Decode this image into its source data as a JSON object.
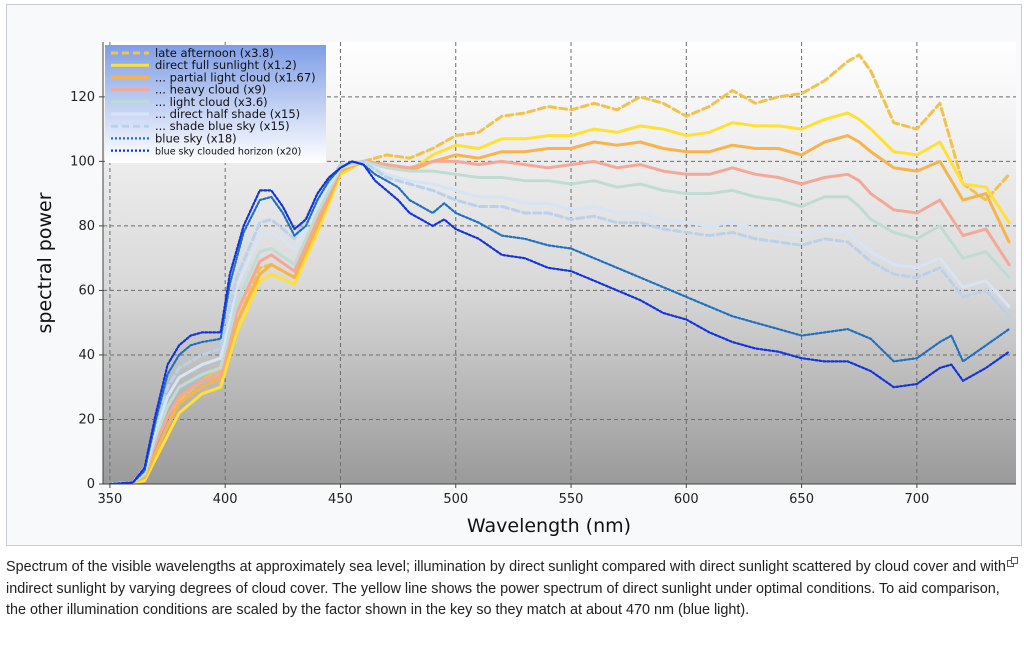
{
  "caption": "Spectrum of the visible wavelengths at approximately sea level; illumination by direct sunlight compared with direct sunlight scattered by cloud cover and with indirect sunlight by varying degrees of cloud cover. The yellow line shows the power spectrum of direct sunlight under optimal conditions. To aid comparison, the other illumination conditions are scaled by the factor shown in the key so they match at about 470 nm (blue light).",
  "icons": {
    "enlarge": "enlarge-icon"
  },
  "chart_data": {
    "type": "line",
    "title": "",
    "xlabel": "Wavelength (nm)",
    "ylabel": "spectral power",
    "xlim": [
      347,
      743
    ],
    "ylim": [
      0,
      137
    ],
    "xticks": [
      350,
      400,
      450,
      500,
      550,
      600,
      650,
      700
    ],
    "yticks": [
      0,
      20,
      40,
      60,
      80,
      100,
      120
    ],
    "grid": true,
    "legend_position": "top-left",
    "series": [
      {
        "name": "late afternoon (x3.8)",
        "color": "#f2c24a",
        "style": "dashed",
        "x": [
          350,
          360,
          365,
          370,
          375,
          380,
          390,
          398,
          405,
          415,
          420,
          430,
          440,
          450,
          460,
          470,
          480,
          490,
          500,
          510,
          520,
          530,
          540,
          550,
          560,
          570,
          580,
          590,
          600,
          610,
          620,
          630,
          640,
          650,
          660,
          670,
          675,
          680,
          690,
          700,
          710,
          720,
          730,
          740
        ],
        "y": [
          0,
          0.5,
          2,
          10,
          18,
          26,
          32,
          36,
          50,
          67,
          68,
          64,
          80,
          98,
          100,
          102,
          101,
          104,
          108,
          109,
          114,
          115,
          117,
          116,
          118,
          116,
          120,
          118,
          114,
          117,
          122,
          118,
          120,
          121,
          125,
          131,
          133,
          128,
          112,
          110,
          118,
          93,
          88,
          96
        ]
      },
      {
        "name": "direct full sunlight (x1.2)",
        "color": "#ffe033",
        "style": "solid",
        "x": [
          350,
          360,
          365,
          370,
          375,
          380,
          390,
          398,
          405,
          415,
          420,
          430,
          440,
          450,
          460,
          470,
          480,
          490,
          500,
          510,
          520,
          530,
          540,
          550,
          560,
          570,
          580,
          590,
          600,
          610,
          620,
          630,
          640,
          650,
          660,
          670,
          675,
          680,
          690,
          700,
          710,
          720,
          730,
          740
        ],
        "y": [
          0,
          0.5,
          1,
          8,
          15,
          22,
          28,
          30,
          47,
          63,
          65,
          62,
          78,
          96,
          100,
          99,
          97,
          102,
          105,
          104,
          107,
          107,
          108,
          108,
          110,
          109,
          111,
          110,
          108,
          109,
          112,
          111,
          111,
          110,
          113,
          115,
          113,
          110,
          103,
          102,
          106,
          93,
          92,
          81
        ]
      },
      {
        "name": "... partial light cloud (x1.67)",
        "color": "#f8b34a",
        "style": "solid",
        "x": [
          350,
          360,
          365,
          370,
          375,
          380,
          390,
          398,
          405,
          415,
          420,
          430,
          440,
          450,
          460,
          470,
          480,
          490,
          500,
          510,
          520,
          530,
          540,
          550,
          560,
          570,
          580,
          590,
          600,
          610,
          620,
          630,
          640,
          650,
          660,
          670,
          675,
          680,
          690,
          700,
          710,
          720,
          730,
          740
        ],
        "y": [
          0,
          0.5,
          2,
          10,
          18,
          25,
          30,
          33,
          50,
          65,
          68,
          64,
          80,
          97,
          100,
          99,
          97,
          100,
          102,
          101,
          103,
          103,
          104,
          104,
          106,
          105,
          106,
          104,
          103,
          103,
          105,
          104,
          104,
          102,
          106,
          108,
          106,
          103,
          98,
          97,
          100,
          88,
          90,
          75
        ]
      },
      {
        "name": "... heavy cloud (x9)",
        "color": "#f4a997",
        "style": "solid",
        "x": [
          350,
          360,
          365,
          370,
          375,
          380,
          390,
          398,
          405,
          415,
          420,
          430,
          440,
          450,
          460,
          470,
          480,
          490,
          500,
          510,
          520,
          530,
          540,
          550,
          560,
          570,
          580,
          590,
          600,
          610,
          620,
          630,
          640,
          650,
          660,
          670,
          675,
          680,
          690,
          700,
          710,
          720,
          730,
          740
        ],
        "y": [
          0,
          0.5,
          3,
          13,
          21,
          27,
          32,
          34,
          53,
          69,
          71,
          66,
          82,
          98,
          100,
          99,
          98,
          100,
          100,
          99,
          100,
          99,
          98,
          99,
          100,
          98,
          99,
          97,
          96,
          96,
          98,
          96,
          95,
          93,
          95,
          96,
          94,
          90,
          85,
          84,
          88,
          77,
          79,
          68
        ]
      },
      {
        "name": "... light cloud (x3.6)",
        "color": "#bfdcd4",
        "style": "solid",
        "x": [
          350,
          360,
          365,
          370,
          375,
          380,
          390,
          398,
          405,
          415,
          420,
          430,
          440,
          450,
          460,
          470,
          480,
          490,
          500,
          510,
          520,
          530,
          540,
          550,
          560,
          570,
          580,
          590,
          600,
          610,
          620,
          630,
          640,
          650,
          660,
          670,
          675,
          680,
          690,
          700,
          710,
          720,
          730,
          740
        ],
        "y": [
          0,
          0.5,
          3,
          15,
          24,
          30,
          34,
          36,
          56,
          72,
          73,
          68,
          84,
          98,
          100,
          98,
          97,
          97,
          96,
          95,
          95,
          94,
          94,
          93,
          94,
          92,
          93,
          91,
          90,
          90,
          91,
          89,
          88,
          86,
          89,
          89,
          86,
          82,
          78,
          76,
          80,
          70,
          72,
          64
        ]
      },
      {
        "name": "... direct half shade (x15)",
        "color": "#d6e4f5",
        "style": "solid",
        "x": [
          350,
          360,
          365,
          370,
          375,
          380,
          390,
          398,
          405,
          415,
          420,
          430,
          440,
          450,
          460,
          470,
          480,
          490,
          500,
          510,
          520,
          530,
          540,
          550,
          560,
          570,
          580,
          590,
          600,
          610,
          620,
          630,
          640,
          650,
          660,
          670,
          675,
          680,
          690,
          700,
          710,
          720,
          730,
          740
        ],
        "y": [
          0,
          0.5,
          4,
          17,
          27,
          33,
          37,
          39,
          61,
          77,
          78,
          73,
          87,
          98,
          100,
          96,
          94,
          93,
          91,
          89,
          89,
          87,
          87,
          85,
          86,
          84,
          84,
          82,
          81,
          80,
          81,
          79,
          78,
          77,
          79,
          78,
          75,
          72,
          68,
          67,
          70,
          61,
          63,
          55
        ]
      },
      {
        "name": "... shade blue sky (x15)",
        "color": "#b9d1ec",
        "style": "dashed",
        "x": [
          350,
          360,
          365,
          370,
          375,
          380,
          390,
          398,
          405,
          415,
          420,
          430,
          440,
          450,
          460,
          470,
          480,
          490,
          500,
          510,
          520,
          530,
          540,
          550,
          560,
          570,
          580,
          590,
          600,
          610,
          620,
          630,
          640,
          650,
          660,
          670,
          675,
          680,
          690,
          700,
          710,
          720,
          730,
          740
        ],
        "y": [
          0,
          0.5,
          5,
          19,
          30,
          36,
          40,
          42,
          64,
          81,
          82,
          76,
          89,
          99,
          100,
          95,
          93,
          91,
          88,
          86,
          86,
          84,
          84,
          82,
          83,
          81,
          81,
          79,
          78,
          77,
          78,
          76,
          75,
          74,
          76,
          75,
          72,
          69,
          65,
          64,
          67,
          58,
          60,
          52
        ]
      },
      {
        "name": "blue sky (x18)",
        "color": "#1f70c1",
        "style": "dotted",
        "x": [
          350,
          360,
          365,
          370,
          375,
          380,
          385,
          390,
          398,
          402,
          408,
          415,
          420,
          425,
          430,
          435,
          440,
          445,
          450,
          455,
          460,
          465,
          470,
          475,
          480,
          485,
          490,
          495,
          500,
          510,
          520,
          530,
          540,
          550,
          560,
          570,
          580,
          590,
          600,
          610,
          620,
          630,
          640,
          650,
          660,
          670,
          680,
          690,
          700,
          710,
          715,
          720,
          730,
          740
        ],
        "y": [
          0,
          0.5,
          4,
          20,
          34,
          40,
          43,
          44,
          45,
          62,
          78,
          88,
          89,
          84,
          77,
          80,
          88,
          94,
          98,
          100,
          99,
          96,
          94,
          92,
          88,
          86,
          84,
          87,
          84,
          81,
          77,
          76,
          74,
          73,
          70,
          67,
          64,
          61,
          58,
          55,
          52,
          50,
          48,
          46,
          47,
          48,
          45,
          38,
          39,
          44,
          46,
          38,
          43,
          48
        ]
      },
      {
        "name": "blue sky clouded horizon (x20)",
        "color": "#1133dd",
        "style": "dotted",
        "x": [
          350,
          360,
          365,
          370,
          375,
          380,
          385,
          390,
          398,
          402,
          408,
          415,
          420,
          425,
          430,
          435,
          440,
          445,
          450,
          455,
          460,
          465,
          470,
          475,
          480,
          485,
          490,
          495,
          500,
          510,
          520,
          530,
          540,
          550,
          560,
          570,
          580,
          590,
          600,
          610,
          620,
          630,
          640,
          650,
          660,
          670,
          680,
          690,
          700,
          710,
          715,
          720,
          730,
          740
        ],
        "y": [
          0,
          0.5,
          5,
          22,
          37,
          43,
          46,
          47,
          47,
          65,
          80,
          91,
          91,
          86,
          79,
          82,
          90,
          95,
          98,
          100,
          99,
          94,
          91,
          88,
          84,
          82,
          80,
          82,
          79,
          76,
          71,
          70,
          67,
          66,
          63,
          60,
          57,
          53,
          51,
          47,
          44,
          42,
          41,
          39,
          38,
          38,
          35,
          30,
          31,
          36,
          37,
          32,
          36,
          41
        ]
      }
    ]
  }
}
